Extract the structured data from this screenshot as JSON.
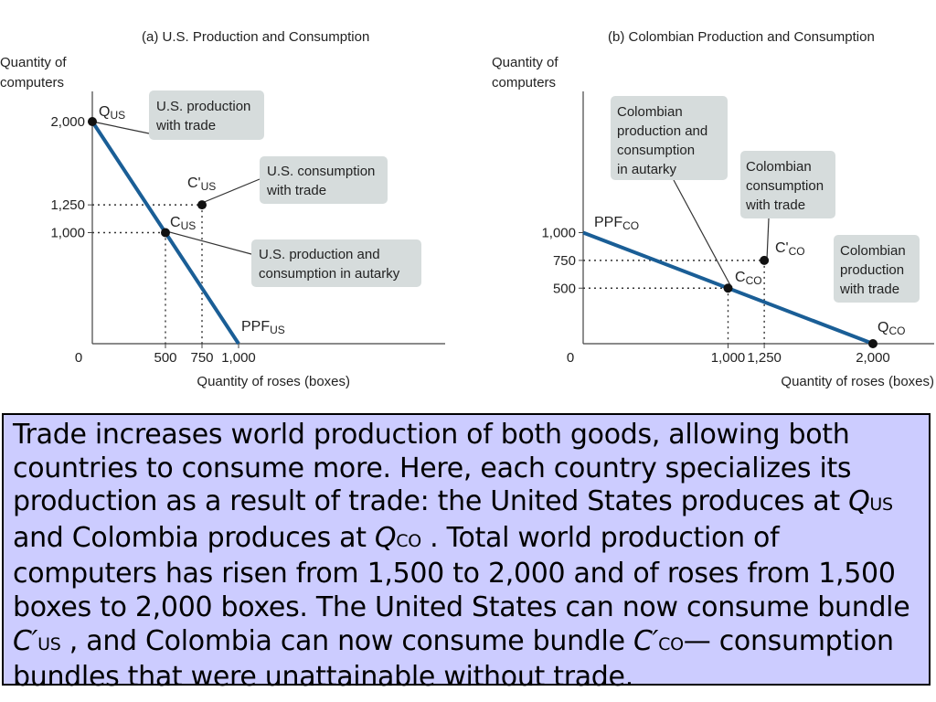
{
  "chart_data": [
    {
      "type": "line",
      "title": "(a) U.S. Production and Consumption",
      "ylabel": "Quantity of computers",
      "xlabel": "Quantity of roses (boxes)",
      "xlim": [
        0,
        1000
      ],
      "ylim": [
        0,
        2000
      ],
      "x_tick_values": [
        500,
        750,
        1000
      ],
      "x_tick_labels": [
        "500",
        "750",
        "1,000"
      ],
      "y_tick_values": [
        1000,
        1250,
        2000
      ],
      "y_tick_labels": [
        "1,000",
        "1,250",
        "2,000"
      ],
      "origin_label": "0",
      "series": [
        {
          "name": "PPF",
          "points": [
            [
              0,
              2000
            ],
            [
              1000,
              0
            ]
          ]
        }
      ],
      "ppf_label": {
        "main": "PPF",
        "sub": "US"
      },
      "points": [
        {
          "id": "q",
          "x": 0,
          "y": 2000,
          "main": "Q",
          "prime": "",
          "sub": "US",
          "dashed": false
        },
        {
          "id": "c",
          "x": 500,
          "y": 1000,
          "main": "C",
          "prime": "",
          "sub": "US",
          "dashed": true
        },
        {
          "id": "cp",
          "x": 750,
          "y": 1250,
          "main": "C",
          "prime": "'",
          "sub": "US",
          "dashed": true
        }
      ],
      "callouts": [
        {
          "id": "q",
          "lines": [
            "U.S. production",
            "with trade"
          ]
        },
        {
          "id": "cp",
          "lines": [
            "U.S. consumption",
            "with trade"
          ]
        },
        {
          "id": "c",
          "lines": [
            "U.S. production and",
            "consumption in autarky"
          ]
        }
      ]
    },
    {
      "type": "line",
      "title": "(b) Colombian Production and Consumption",
      "ylabel": "Quantity of computers",
      "xlabel": "Quantity of roses (boxes)",
      "xlim": [
        0,
        2000
      ],
      "ylim": [
        0,
        1000
      ],
      "x_tick_values": [
        1000,
        1250,
        2000
      ],
      "x_tick_labels": [
        "1,000",
        "1,250",
        "2,000"
      ],
      "y_tick_values": [
        500,
        750,
        1000
      ],
      "y_tick_labels": [
        "500",
        "750",
        "1,000"
      ],
      "origin_label": "0",
      "series": [
        {
          "name": "PPF",
          "points": [
            [
              0,
              1000
            ],
            [
              2000,
              0
            ]
          ]
        }
      ],
      "ppf_label": {
        "main": "PPF",
        "sub": "CO"
      },
      "points": [
        {
          "id": "c",
          "x": 1000,
          "y": 500,
          "main": "C",
          "prime": "",
          "sub": "CO",
          "dashed": true
        },
        {
          "id": "cp",
          "x": 1250,
          "y": 750,
          "main": "C",
          "prime": "'",
          "sub": "CO",
          "dashed": true
        },
        {
          "id": "q",
          "x": 2000,
          "y": 0,
          "main": "Q",
          "prime": "",
          "sub": "CO",
          "dashed": false
        }
      ],
      "callouts": [
        {
          "id": "c",
          "lines": [
            "Colombian",
            "production and",
            "consumption",
            "in autarky"
          ]
        },
        {
          "id": "cp",
          "lines": [
            "Colombian",
            "consumption",
            "with trade"
          ]
        },
        {
          "id": "q",
          "lines": [
            "Colombian",
            "production",
            "with trade"
          ]
        }
      ]
    }
  ],
  "caption": {
    "p1": "Trade increases world production of both goods, allowing both countries to consume more. Here, each country specializes its production as a result of trade: the United States produces at ",
    "qus_sym": "Q",
    "qus_sub": "US",
    "p2": " and Colombia produces at ",
    "qco_sym": "Q",
    "qco_sub": "CO",
    "p3": " . Total world production of computers has risen from 1,500 to 2,000 and of roses from 1,500 boxes to 2,000 boxes. The United States can now consume bundle ",
    "cus_sym": "C′",
    "cus_sub": "US",
    "p4": " , and Colombia can now consume bundle ",
    "cco_sym": "C′",
    "cco_sub": "CO",
    "p5": "— consumption bundles that were unattainable without trade."
  },
  "colors": {
    "ppf_line": "#1a5e96",
    "callout_fill": "#d6dcdc",
    "caption_bg": "#ccccff",
    "axis": "#444444",
    "text": "#222222"
  }
}
